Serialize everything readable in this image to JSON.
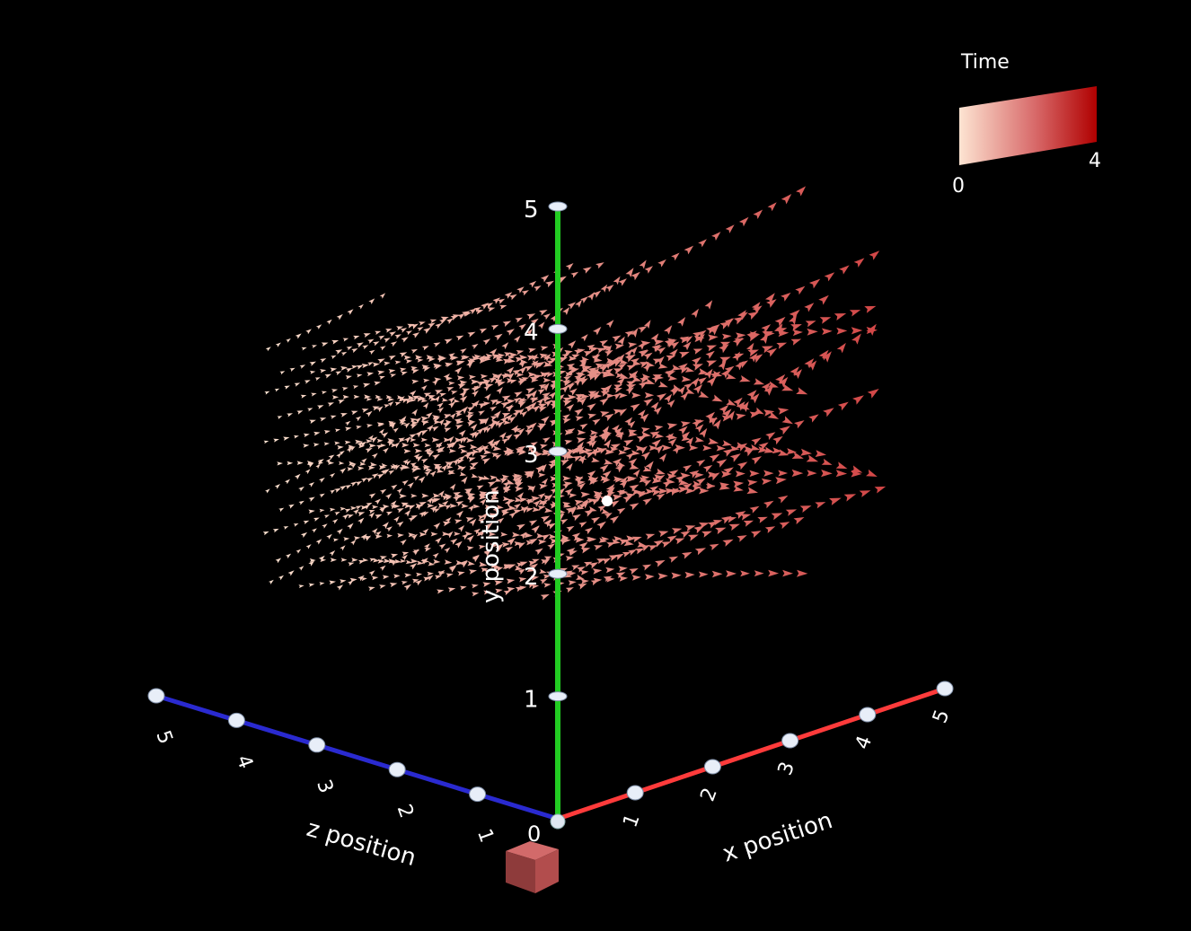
{
  "chart_data": {
    "type": "3d-streamline",
    "axes": {
      "x": {
        "label": "x position",
        "ticks": [
          "1",
          "2",
          "3",
          "4",
          "5"
        ],
        "range": [
          0,
          5
        ],
        "color": "#ff3b3b"
      },
      "y": {
        "label": "y position",
        "ticks": [
          "1",
          "2",
          "3",
          "4",
          "5"
        ],
        "range": [
          0,
          5
        ],
        "color": "#22cc22"
      },
      "z": {
        "label": "z position",
        "ticks": [
          "1",
          "2",
          "3",
          "4",
          "5"
        ],
        "range": [
          0,
          5
        ],
        "color": "#2222cc"
      },
      "origin_label": "0"
    },
    "colorbar": {
      "title": "Time",
      "min_label": "0",
      "max_label": "4",
      "range": [
        0,
        4
      ],
      "colors": [
        "#fde4d2",
        "#d33c3c",
        "#b00000"
      ]
    },
    "background": "#000000"
  }
}
